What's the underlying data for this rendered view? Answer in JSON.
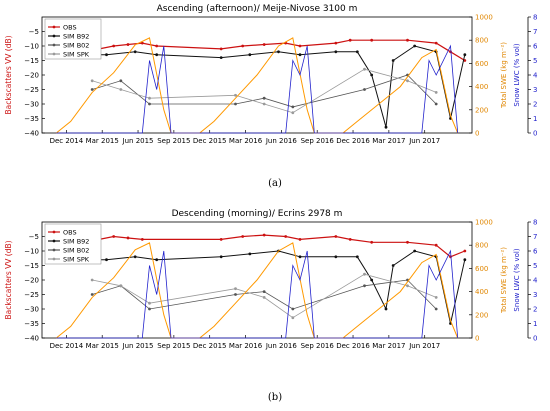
{
  "captions": [
    "(a)",
    "(b)"
  ],
  "chart_data": [
    {
      "type": "line",
      "title": "Ascending (afternoon)/ Meije-Nivose 3100 m",
      "ylabel": "Backscatters VV (dB)",
      "y2label": "Total SWE (kg m⁻²)",
      "y3label": "Snow LWC (% vol)",
      "ylim": [
        -40,
        0
      ],
      "y2lim": [
        0,
        1000
      ],
      "y3lim": [
        0,
        8
      ],
      "yticks": [
        "−5",
        "−10",
        "−15",
        "−20",
        "−25",
        "−30",
        "−35",
        "−40"
      ],
      "y2ticks": [
        "0",
        "200",
        "400",
        "600",
        "800",
        "1000"
      ],
      "y3ticks": [
        "0",
        "1",
        "2",
        "3",
        "4",
        "5",
        "6",
        "7",
        "8"
      ],
      "xticks": [
        "Dec 2014",
        "Mar 2015",
        "Jun 2015",
        "Sep 2015",
        "Dec 2015",
        "Mar 2016",
        "Jun 2016",
        "Sep 2016",
        "Dec 2016",
        "Mar 2017",
        "Jun 2017"
      ],
      "legend": [
        "OBS",
        "SIM B92",
        "SIM B02",
        "SIM SPK"
      ],
      "legend_position": "top-left",
      "colors": {
        "obs": "#cc1111",
        "b92": "#111111",
        "b02": "#555555",
        "spk": "#9a9a9a",
        "swe": "#ff9900",
        "lwc": "#2222cc"
      },
      "series": [
        {
          "name": "OBS",
          "axis": "left",
          "points": [
            [
              2015.02,
              -12
            ],
            [
              2015.15,
              -11
            ],
            [
              2015.25,
              -10
            ],
            [
              2015.35,
              -9.5
            ],
            [
              2015.45,
              -9
            ],
            [
              2015.55,
              -10
            ],
            [
              2016.0,
              -11
            ],
            [
              2016.15,
              -10
            ],
            [
              2016.3,
              -9.5
            ],
            [
              2016.45,
              -9
            ],
            [
              2016.55,
              -10
            ],
            [
              2016.8,
              -9
            ],
            [
              2016.9,
              -8
            ],
            [
              2017.05,
              -8
            ],
            [
              2017.3,
              -8
            ],
            [
              2017.5,
              -9
            ],
            [
              2017.6,
              -12
            ],
            [
              2017.7,
              -15
            ]
          ]
        },
        {
          "name": "SIM B92",
          "axis": "left",
          "points": [
            [
              2015.02,
              -13
            ],
            [
              2015.2,
              -13
            ],
            [
              2015.4,
              -12
            ],
            [
              2015.55,
              -13
            ],
            [
              2016.0,
              -14
            ],
            [
              2016.2,
              -13
            ],
            [
              2016.4,
              -12
            ],
            [
              2016.55,
              -13
            ],
            [
              2016.8,
              -12
            ],
            [
              2016.95,
              -12
            ],
            [
              2017.05,
              -20
            ],
            [
              2017.15,
              -38
            ],
            [
              2017.2,
              -15
            ],
            [
              2017.35,
              -10
            ],
            [
              2017.5,
              -12
            ],
            [
              2017.6,
              -35
            ],
            [
              2017.7,
              -13
            ]
          ]
        },
        {
          "name": "SIM B02",
          "axis": "left",
          "points": [
            [
              2015.1,
              -25
            ],
            [
              2015.3,
              -22
            ],
            [
              2015.5,
              -30
            ],
            [
              2016.1,
              -30
            ],
            [
              2016.3,
              -28
            ],
            [
              2016.5,
              -31
            ],
            [
              2017.0,
              -25
            ],
            [
              2017.3,
              -20
            ],
            [
              2017.5,
              -30
            ]
          ]
        },
        {
          "name": "SIM SPK",
          "axis": "left",
          "points": [
            [
              2015.1,
              -22
            ],
            [
              2015.3,
              -25
            ],
            [
              2015.5,
              -28
            ],
            [
              2016.1,
              -27
            ],
            [
              2016.3,
              -30
            ],
            [
              2016.5,
              -33
            ],
            [
              2017.0,
              -18
            ],
            [
              2017.3,
              -22
            ],
            [
              2017.5,
              -26
            ]
          ]
        },
        {
          "name": "",
          "axis": "swe",
          "points": [
            [
              2014.85,
              0
            ],
            [
              2014.95,
              100
            ],
            [
              2015.1,
              350
            ],
            [
              2015.25,
              520
            ],
            [
              2015.4,
              760
            ],
            [
              2015.5,
              820
            ],
            [
              2015.6,
              200
            ],
            [
              2015.65,
              0
            ],
            [
              2015.85,
              0
            ],
            [
              2015.95,
              100
            ],
            [
              2016.1,
              300
            ],
            [
              2016.25,
              500
            ],
            [
              2016.4,
              750
            ],
            [
              2016.5,
              820
            ],
            [
              2016.6,
              200
            ],
            [
              2016.65,
              0
            ],
            [
              2016.85,
              0
            ],
            [
              2016.95,
              100
            ],
            [
              2017.1,
              250
            ],
            [
              2017.25,
              400
            ],
            [
              2017.4,
              650
            ],
            [
              2017.5,
              720
            ],
            [
              2017.6,
              150
            ],
            [
              2017.65,
              0
            ]
          ]
        },
        {
          "name": "",
          "axis": "lwc",
          "points": [
            [
              2014.85,
              0
            ],
            [
              2015.45,
              0
            ],
            [
              2015.5,
              5
            ],
            [
              2015.55,
              3
            ],
            [
              2015.6,
              6
            ],
            [
              2015.65,
              0
            ],
            [
              2015.85,
              0
            ],
            [
              2016.45,
              0
            ],
            [
              2016.5,
              5
            ],
            [
              2016.55,
              4
            ],
            [
              2016.6,
              6
            ],
            [
              2016.65,
              0
            ],
            [
              2016.85,
              0
            ],
            [
              2017.4,
              0
            ],
            [
              2017.45,
              5
            ],
            [
              2017.5,
              4
            ],
            [
              2017.6,
              6
            ],
            [
              2017.65,
              0
            ]
          ]
        }
      ]
    },
    {
      "type": "line",
      "title": "Descending (morning)/ Ecrins 2978 m",
      "ylabel": "Backscatters VV (dB)",
      "y2label": "Total SWE (kg m⁻²)",
      "y3label": "Snow LWC (% vol)",
      "ylim": [
        -40,
        0
      ],
      "y2lim": [
        0,
        1000
      ],
      "y3lim": [
        0,
        8
      ],
      "yticks": [
        "−5",
        "−10",
        "−15",
        "−20",
        "−25",
        "−30",
        "−35",
        "−40"
      ],
      "y2ticks": [
        "0",
        "200",
        "400",
        "600",
        "800",
        "1000"
      ],
      "y3ticks": [
        "0",
        "1",
        "2",
        "3",
        "4",
        "5",
        "6",
        "7",
        "8"
      ],
      "xticks": [
        "Dec 2014",
        "Mar 2015",
        "Jun 2015",
        "Sep 2015",
        "Dec 2015",
        "Mar 2016",
        "Jun 2016",
        "Sep 2016",
        "Dec 2016",
        "Mar 2017",
        "Jun 2017"
      ],
      "legend": [
        "OBS",
        "SIM B92",
        "SIM B02",
        "SIM SPK"
      ],
      "legend_position": "top-left",
      "colors": {
        "obs": "#cc1111",
        "b92": "#111111",
        "b02": "#555555",
        "spk": "#9a9a9a",
        "swe": "#ff9900",
        "lwc": "#2222cc"
      },
      "series": [
        {
          "name": "OBS",
          "axis": "left",
          "points": [
            [
              2015.02,
              -7
            ],
            [
              2015.15,
              -6
            ],
            [
              2015.25,
              -5
            ],
            [
              2015.35,
              -5.5
            ],
            [
              2015.45,
              -6
            ],
            [
              2016.0,
              -6
            ],
            [
              2016.15,
              -5
            ],
            [
              2016.3,
              -4.5
            ],
            [
              2016.45,
              -5
            ],
            [
              2016.55,
              -6
            ],
            [
              2016.8,
              -5
            ],
            [
              2016.9,
              -6
            ],
            [
              2017.05,
              -7
            ],
            [
              2017.3,
              -7
            ],
            [
              2017.5,
              -8
            ],
            [
              2017.6,
              -12
            ],
            [
              2017.7,
              -10
            ]
          ]
        },
        {
          "name": "SIM B92",
          "axis": "left",
          "points": [
            [
              2015.02,
              -13
            ],
            [
              2015.2,
              -13
            ],
            [
              2015.4,
              -12
            ],
            [
              2015.55,
              -13
            ],
            [
              2016.0,
              -12
            ],
            [
              2016.2,
              -11
            ],
            [
              2016.4,
              -10
            ],
            [
              2016.55,
              -12
            ],
            [
              2016.8,
              -12
            ],
            [
              2016.95,
              -12
            ],
            [
              2017.05,
              -20
            ],
            [
              2017.15,
              -30
            ],
            [
              2017.2,
              -15
            ],
            [
              2017.35,
              -10
            ],
            [
              2017.5,
              -12
            ],
            [
              2017.6,
              -35
            ],
            [
              2017.7,
              -13
            ]
          ]
        },
        {
          "name": "SIM B02",
          "axis": "left",
          "points": [
            [
              2015.1,
              -25
            ],
            [
              2015.3,
              -22
            ],
            [
              2015.5,
              -30
            ],
            [
              2016.1,
              -25
            ],
            [
              2016.3,
              -24
            ],
            [
              2016.5,
              -30
            ],
            [
              2017.0,
              -22
            ],
            [
              2017.3,
              -20
            ],
            [
              2017.5,
              -30
            ]
          ]
        },
        {
          "name": "SIM SPK",
          "axis": "left",
          "points": [
            [
              2015.1,
              -20
            ],
            [
              2015.3,
              -22
            ],
            [
              2015.5,
              -28
            ],
            [
              2016.1,
              -23
            ],
            [
              2016.3,
              -26
            ],
            [
              2016.5,
              -33
            ],
            [
              2017.0,
              -18
            ],
            [
              2017.3,
              -22
            ],
            [
              2017.5,
              -26
            ]
          ]
        },
        {
          "name": "",
          "axis": "swe",
          "points": [
            [
              2014.85,
              0
            ],
            [
              2014.95,
              100
            ],
            [
              2015.1,
              350
            ],
            [
              2015.25,
              520
            ],
            [
              2015.4,
              760
            ],
            [
              2015.5,
              820
            ],
            [
              2015.6,
              200
            ],
            [
              2015.65,
              0
            ],
            [
              2015.85,
              0
            ],
            [
              2015.95,
              100
            ],
            [
              2016.1,
              300
            ],
            [
              2016.25,
              500
            ],
            [
              2016.4,
              750
            ],
            [
              2016.5,
              820
            ],
            [
              2016.6,
              200
            ],
            [
              2016.65,
              0
            ],
            [
              2016.85,
              0
            ],
            [
              2016.95,
              100
            ],
            [
              2017.1,
              250
            ],
            [
              2017.25,
              400
            ],
            [
              2017.4,
              650
            ],
            [
              2017.5,
              720
            ],
            [
              2017.6,
              150
            ],
            [
              2017.65,
              0
            ]
          ]
        },
        {
          "name": "",
          "axis": "lwc",
          "points": [
            [
              2014.85,
              0
            ],
            [
              2015.45,
              0
            ],
            [
              2015.5,
              5
            ],
            [
              2015.55,
              3
            ],
            [
              2015.6,
              6
            ],
            [
              2015.65,
              0
            ],
            [
              2015.85,
              0
            ],
            [
              2016.45,
              0
            ],
            [
              2016.5,
              5
            ],
            [
              2016.55,
              4
            ],
            [
              2016.6,
              6
            ],
            [
              2016.65,
              0
            ],
            [
              2016.85,
              0
            ],
            [
              2017.4,
              0
            ],
            [
              2017.45,
              5
            ],
            [
              2017.5,
              4
            ],
            [
              2017.6,
              6
            ],
            [
              2017.65,
              0
            ]
          ]
        }
      ]
    }
  ]
}
